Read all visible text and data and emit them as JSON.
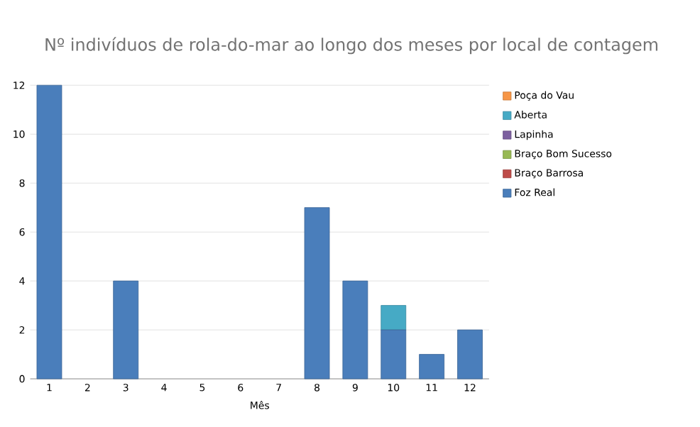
{
  "chart_data": {
    "type": "bar",
    "stacked": true,
    "title": "Nº indivíduos de rola-do-mar ao longo dos meses por local de contagem",
    "xlabel": "Mês",
    "categories": [
      "1",
      "2",
      "3",
      "4",
      "5",
      "6",
      "7",
      "8",
      "9",
      "10",
      "11",
      "12"
    ],
    "series": [
      {
        "name": "Foz Real",
        "color": "#4a7ebb",
        "values": [
          12,
          0,
          4,
          0,
          0,
          0,
          0,
          7,
          4,
          2,
          1,
          2
        ]
      },
      {
        "name": "Braço Barrosa",
        "color": "#be4b48",
        "values": [
          0,
          0,
          0,
          0,
          0,
          0,
          0,
          0,
          0,
          0,
          0,
          0
        ]
      },
      {
        "name": "Braço Bom Sucesso",
        "color": "#98b954",
        "values": [
          0,
          0,
          0,
          0,
          0,
          0,
          0,
          0,
          0,
          0,
          0,
          0
        ]
      },
      {
        "name": "Lapinha",
        "color": "#7d60a0",
        "values": [
          0,
          0,
          0,
          0,
          0,
          0,
          0,
          0,
          0,
          0,
          0,
          0
        ]
      },
      {
        "name": "Aberta",
        "color": "#46aac5",
        "values": [
          0,
          0,
          0,
          0,
          0,
          0,
          0,
          0,
          0,
          1,
          0,
          0
        ]
      },
      {
        "name": "Poça do Vau",
        "color": "#f79646",
        "values": [
          0,
          0,
          0,
          0,
          0,
          0,
          0,
          0,
          0,
          0,
          0,
          0
        ]
      }
    ],
    "ylim": [
      0,
      12
    ],
    "yticks": [
      0,
      2,
      4,
      6,
      8,
      10,
      12
    ],
    "grid": "y",
    "legend": "right"
  }
}
